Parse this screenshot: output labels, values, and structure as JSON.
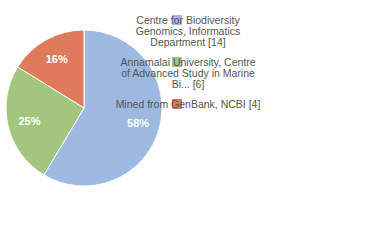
{
  "chart_data": {
    "type": "pie",
    "categories": [
      "Centre for Biodiversity Genomics, Informatics Department [14]",
      "Annamalai University, Centre of Advanced Study in Marine Bi... [6]",
      "Mined from GenBank, NCBI [4]"
    ],
    "values": [
      58,
      25,
      16
    ],
    "value_labels": [
      "58%",
      "25%",
      "16%"
    ],
    "colors": [
      "#9db9e1",
      "#a2c67e",
      "#e07a5c"
    ],
    "data_labels": true,
    "legend": "right"
  }
}
